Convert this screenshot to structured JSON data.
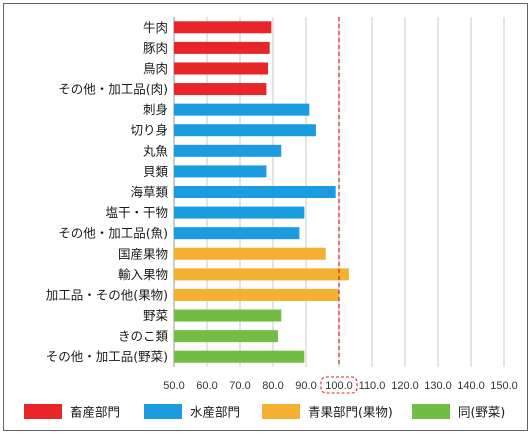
{
  "chart_data": {
    "type": "bar",
    "orientation": "horizontal",
    "categories": [
      "牛肉",
      "豚肉",
      "鳥肉",
      "その他・加工品(肉)",
      "刺身",
      "切り身",
      "丸魚",
      "貝類",
      "海草類",
      "塩干・干物",
      "その他・加工品(魚)",
      "国産果物",
      "輸入果物",
      "加工品・その他(果物)",
      "野菜",
      "きのこ類",
      "その他・加工品(野菜)"
    ],
    "values": [
      79.5,
      79.0,
      78.5,
      78.0,
      91.0,
      93.0,
      82.5,
      78.0,
      99.0,
      89.5,
      88.0,
      96.0,
      103.0,
      100.0,
      82.5,
      81.5,
      89.5
    ],
    "groups": [
      0,
      0,
      0,
      0,
      1,
      1,
      1,
      1,
      1,
      1,
      1,
      2,
      2,
      2,
      3,
      3,
      3
    ],
    "xlim": [
      50,
      150
    ],
    "xticks": [
      "50.0",
      "60.0",
      "70.0",
      "80.0",
      "90.0",
      "100.0",
      "110.0",
      "120.0",
      "130.0",
      "140.0",
      "150.0"
    ],
    "reference_line": 100.0,
    "grid": true,
    "legend_position": "bottom",
    "legend": [
      {
        "name": "畜産部門",
        "color": "#e8262a"
      },
      {
        "name": "水産部門",
        "color": "#1b9be0"
      },
      {
        "name": "青果部門(果物)",
        "color": "#f4b131"
      },
      {
        "name": "同(野菜)",
        "color": "#72bd44"
      }
    ],
    "reference_color": "#d9262a"
  }
}
